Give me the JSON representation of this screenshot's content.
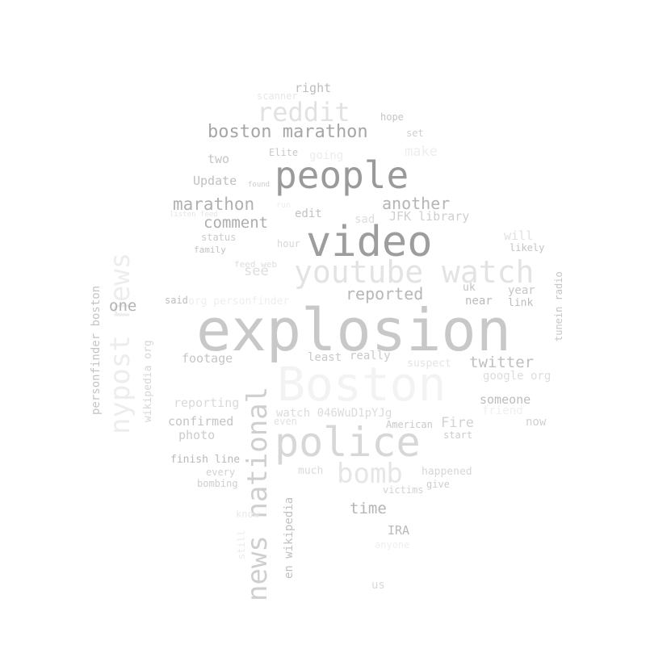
{
  "words": [
    {
      "text": "explosion",
      "size": 72,
      "color": "#c8c8c8",
      "vertical": false
    },
    {
      "text": "video",
      "size": 52,
      "color": "#9d9d9d",
      "vertical": false
    },
    {
      "text": "people",
      "size": 46,
      "color": "#9a9a9a",
      "vertical": false
    },
    {
      "text": "police",
      "size": 50,
      "color": "#d7d7d7",
      "vertical": false
    },
    {
      "text": "Boston",
      "size": 58,
      "color": "#f3f3f3",
      "vertical": false
    },
    {
      "text": "youtube watch",
      "size": 38,
      "color": "#e3e3e3",
      "vertical": false
    },
    {
      "text": "news national",
      "size": 34,
      "color": "#cfcfcf",
      "vertical": true
    },
    {
      "text": "nypost news",
      "size": 34,
      "color": "#ededed",
      "vertical": true
    },
    {
      "text": "reddit",
      "size": 32,
      "color": "#e2e2e2",
      "vertical": false
    },
    {
      "text": "bomb",
      "size": 34,
      "color": "#e6e6e6",
      "vertical": false
    },
    {
      "text": "boston marathon",
      "size": 22,
      "color": "#a6a6a6",
      "vertical": false
    },
    {
      "text": "marathon",
      "size": 21,
      "color": "#b0b0b0",
      "vertical": false
    },
    {
      "text": "another",
      "size": 20,
      "color": "#b5b5b5",
      "vertical": false
    },
    {
      "text": "comment",
      "size": 19,
      "color": "#adadad",
      "vertical": false
    },
    {
      "text": "reported",
      "size": 20,
      "color": "#b7b7b7",
      "vertical": false
    },
    {
      "text": "twitter",
      "size": 19,
      "color": "#bfbfbf",
      "vertical": false
    },
    {
      "text": "time",
      "size": 19,
      "color": "#b4b4b4",
      "vertical": false
    },
    {
      "text": "one",
      "size": 19,
      "color": "#b3b3b3",
      "vertical": false
    },
    {
      "text": "Fire",
      "size": 17,
      "color": "#d2d2d2",
      "vertical": false
    },
    {
      "text": "see",
      "size": 17,
      "color": "#dddddd",
      "vertical": false
    },
    {
      "text": "make",
      "size": 17,
      "color": "#eeeeee",
      "vertical": false
    },
    {
      "text": "will",
      "size": 15,
      "color": "#e1e1e1",
      "vertical": false
    },
    {
      "text": "right",
      "size": 15,
      "color": "#bdbdbd",
      "vertical": false
    },
    {
      "text": "two",
      "size": 15,
      "color": "#c4c4c4",
      "vertical": false
    },
    {
      "text": "Update",
      "size": 15,
      "color": "#c0c0c0",
      "vertical": false
    },
    {
      "text": "JFK library",
      "size": 15,
      "color": "#cfcfcf",
      "vertical": false
    },
    {
      "text": "edit",
      "size": 14,
      "color": "#c2c2c2",
      "vertical": false
    },
    {
      "text": "sad",
      "size": 14,
      "color": "#dddddd",
      "vertical": false
    },
    {
      "text": "footage",
      "size": 15,
      "color": "#c6c6c6",
      "vertical": false
    },
    {
      "text": "reporting",
      "size": 15,
      "color": "#dadada",
      "vertical": false
    },
    {
      "text": "confirmed",
      "size": 15,
      "color": "#c4c4c4",
      "vertical": false
    },
    {
      "text": "photo",
      "size": 15,
      "color": "#cccccc",
      "vertical": false
    },
    {
      "text": "someone",
      "size": 15,
      "color": "#bdbdbd",
      "vertical": false
    },
    {
      "text": "google org",
      "size": 14,
      "color": "#dcdcdc",
      "vertical": false
    },
    {
      "text": "friend",
      "size": 14,
      "color": "#f0f0f0",
      "vertical": false
    },
    {
      "text": "now",
      "size": 14,
      "color": "#d0d0d0",
      "vertical": false
    },
    {
      "text": "least",
      "size": 14,
      "color": "#c8c8c8",
      "vertical": false
    },
    {
      "text": "really",
      "size": 14,
      "color": "#c9c9c9",
      "vertical": false
    },
    {
      "text": "suspect",
      "size": 13,
      "color": "#e4e4e4",
      "vertical": false
    },
    {
      "text": "watch 046WuD1pYJg",
      "size": 14,
      "color": "#dcdcdc",
      "vertical": false
    },
    {
      "text": "finish line",
      "size": 13,
      "color": "#b9b9b9",
      "vertical": false
    },
    {
      "text": "every",
      "size": 12,
      "color": "#d2d2d2",
      "vertical": false
    },
    {
      "text": "bombing",
      "size": 12,
      "color": "#cfcfcf",
      "vertical": false
    },
    {
      "text": "much",
      "size": 13,
      "color": "#dadada",
      "vertical": false
    },
    {
      "text": "happened",
      "size": 13,
      "color": "#d6d6d6",
      "vertical": false
    },
    {
      "text": "give",
      "size": 12,
      "color": "#cdcdcd",
      "vertical": false
    },
    {
      "text": "victims",
      "size": 12,
      "color": "#d2d2d2",
      "vertical": false
    },
    {
      "text": "IRA",
      "size": 15,
      "color": "#b9b9b9",
      "vertical": false
    },
    {
      "text": "us",
      "size": 14,
      "color": "#dadada",
      "vertical": false
    },
    {
      "text": "anyone",
      "size": 12,
      "color": "#efefef",
      "vertical": false
    },
    {
      "text": "American",
      "size": 12,
      "color": "#c8c8c8",
      "vertical": false
    },
    {
      "text": "start",
      "size": 12,
      "color": "#cccccc",
      "vertical": false
    },
    {
      "text": "even",
      "size": 12,
      "color": "#e1e1e1",
      "vertical": false
    },
    {
      "text": "year",
      "size": 14,
      "color": "#c7c7c7",
      "vertical": false
    },
    {
      "text": "link",
      "size": 13,
      "color": "#bdbdbd",
      "vertical": false
    },
    {
      "text": "uk",
      "size": 13,
      "color": "#c2c2c2",
      "vertical": false
    },
    {
      "text": "near",
      "size": 14,
      "color": "#bbbbbb",
      "vertical": false
    },
    {
      "text": "likely",
      "size": 12,
      "color": "#c4c4c4",
      "vertical": false
    },
    {
      "text": "said",
      "size": 12,
      "color": "#bdbdbd",
      "vertical": false
    },
    {
      "text": "org personfinder",
      "size": 13,
      "color": "#eeeeee",
      "vertical": false
    },
    {
      "text": "status",
      "size": 12,
      "color": "#cacaca",
      "vertical": false
    },
    {
      "text": "family",
      "size": 11,
      "color": "#c2c2c2",
      "vertical": false
    },
    {
      "text": "hour",
      "size": 12,
      "color": "#d6d6d6",
      "vertical": false
    },
    {
      "text": "feed web",
      "size": 11,
      "color": "#dedede",
      "vertical": false
    },
    {
      "text": "going",
      "size": 14,
      "color": "#ececec",
      "vertical": false
    },
    {
      "text": "Elite",
      "size": 12,
      "color": "#c9c9c9",
      "vertical": false
    },
    {
      "text": "hope",
      "size": 12,
      "color": "#c4c4c4",
      "vertical": false
    },
    {
      "text": "set",
      "size": 12,
      "color": "#cfcfcf",
      "vertical": false
    },
    {
      "text": "scanner",
      "size": 12,
      "color": "#e6e6e6",
      "vertical": false
    },
    {
      "text": "found",
      "size": 9,
      "color": "#cccccc",
      "vertical": false
    },
    {
      "text": "run",
      "size": 10,
      "color": "#ebebeb",
      "vertical": false
    },
    {
      "text": "listen feed",
      "size": 9,
      "color": "#e5e5e5",
      "vertical": false
    },
    {
      "text": "personfinder boston",
      "size": 14,
      "color": "#c4c4c4",
      "vertical": true
    },
    {
      "text": "wikipedia org",
      "size": 13,
      "color": "#d6d6d6",
      "vertical": true
    },
    {
      "text": "en wikipedia",
      "size": 14,
      "color": "#c0c0c0",
      "vertical": true
    },
    {
      "text": "tunein radio",
      "size": 12,
      "color": "#c5c5c5",
      "vertical": true
    },
    {
      "text": "still",
      "size": 12,
      "color": "#ebebeb",
      "vertical": true
    },
    {
      "text": "know",
      "size": 12,
      "color": "#eaeaea",
      "vertical": false
    }
  ]
}
